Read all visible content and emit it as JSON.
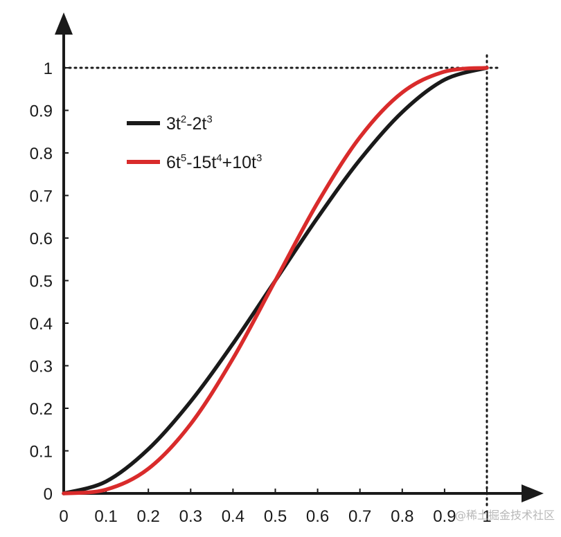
{
  "chart_data": {
    "type": "line",
    "title": "",
    "xlabel": "",
    "ylabel": "",
    "xlim": [
      0,
      1
    ],
    "ylim": [
      0,
      1
    ],
    "grid": false,
    "legend_position": "upper-left",
    "x_ticks": [
      "0",
      "0.1",
      "0.2",
      "0.3",
      "0.4",
      "0.5",
      "0.6",
      "0.7",
      "0.8",
      "0.9",
      "1"
    ],
    "y_ticks": [
      "0",
      "0.1",
      "0.2",
      "0.3",
      "0.4",
      "0.5",
      "0.6",
      "0.7",
      "0.8",
      "0.9",
      "1"
    ],
    "x": [
      0,
      0.1,
      0.2,
      0.3,
      0.4,
      0.5,
      0.6,
      0.7,
      0.8,
      0.9,
      1
    ],
    "series": [
      {
        "name": "3t2-2t3",
        "legend_base": "3t",
        "legend_parts": [
          {
            "text": "3t",
            "sup": false
          },
          {
            "text": "2",
            "sup": true
          },
          {
            "text": "-2t",
            "sup": false
          },
          {
            "text": "3",
            "sup": true
          }
        ],
        "color": "#1a1a1a",
        "values": [
          0,
          0.028,
          0.104,
          0.216,
          0.352,
          0.5,
          0.648,
          0.784,
          0.896,
          0.972,
          1
        ]
      },
      {
        "name": "6t5-15t4+10t3",
        "legend_parts": [
          {
            "text": "6t",
            "sup": false
          },
          {
            "text": "5",
            "sup": true
          },
          {
            "text": "-15t",
            "sup": false
          },
          {
            "text": "4",
            "sup": true
          },
          {
            "text": "+10t",
            "sup": false
          },
          {
            "text": "3",
            "sup": true
          }
        ],
        "color": "#d92b2b",
        "values": [
          0,
          0.009,
          0.058,
          0.163,
          0.317,
          0.5,
          0.683,
          0.837,
          0.942,
          0.991,
          1
        ]
      }
    ],
    "reference_lines": {
      "x": 1,
      "y": 1,
      "style": "dotted"
    }
  },
  "watermark": "@稀土掘金技术社区"
}
